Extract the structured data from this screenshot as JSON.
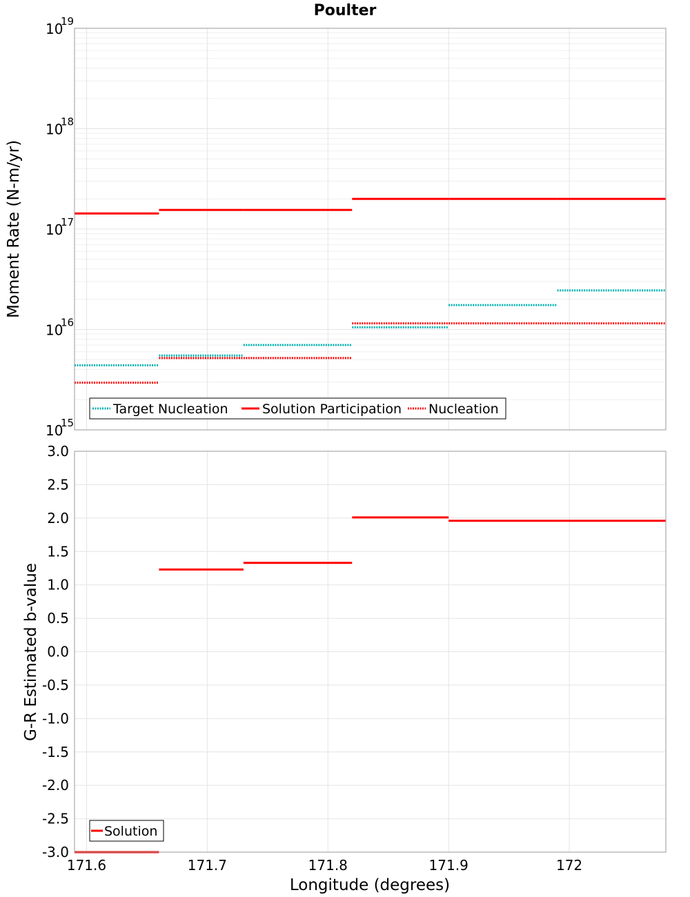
{
  "chart_data": [
    {
      "type": "line",
      "title": "Poulter",
      "ylabel": "Moment Rate (N-m/yr)",
      "yscale": "log",
      "ylim": [
        1000000000000000.0,
        1e+19
      ],
      "y_ticks": [
        {
          "base": "10",
          "exp": "15",
          "value": 1000000000000000.0
        },
        {
          "base": "10",
          "exp": "16",
          "value": 1e+16
        },
        {
          "base": "10",
          "exp": "17",
          "value": 1e+17
        },
        {
          "base": "10",
          "exp": "18",
          "value": 1e+18
        },
        {
          "base": "10",
          "exp": "19",
          "value": 1e+19
        }
      ],
      "xlim": [
        171.59,
        172.08
      ],
      "grid": true,
      "legend_position": "bottom-left",
      "series": [
        {
          "name": "Target Nucleation",
          "color": "#00b0b0",
          "style": "dotted",
          "segments": [
            {
              "x0": 171.59,
              "x1": 171.66,
              "y": 4400000000000000.0
            },
            {
              "x0": 171.66,
              "x1": 171.73,
              "y": 5500000000000000.0
            },
            {
              "x0": 171.73,
              "x1": 171.82,
              "y": 7000000000000000.0
            },
            {
              "x0": 171.82,
              "x1": 171.9,
              "y": 1.05e+16
            },
            {
              "x0": 171.9,
              "x1": 171.99,
              "y": 1.75e+16
            },
            {
              "x0": 171.99,
              "x1": 172.08,
              "y": 2.45e+16
            }
          ]
        },
        {
          "name": "Solution Participation",
          "color": "#ff0000",
          "style": "solid",
          "segments": [
            {
              "x0": 171.59,
              "x1": 171.66,
              "y": 1.43e+17
            },
            {
              "x0": 171.66,
              "x1": 171.73,
              "y": 1.55e+17
            },
            {
              "x0": 171.73,
              "x1": 171.82,
              "y": 1.55e+17
            },
            {
              "x0": 171.82,
              "x1": 171.9,
              "y": 2e+17
            },
            {
              "x0": 171.9,
              "x1": 171.99,
              "y": 2e+17
            },
            {
              "x0": 171.99,
              "x1": 172.08,
              "y": 2e+17
            }
          ]
        },
        {
          "name": "Nucleation",
          "color": "#ff0000",
          "style": "dotted",
          "segments": [
            {
              "x0": 171.59,
              "x1": 171.66,
              "y": 2950000000000000.0
            },
            {
              "x0": 171.66,
              "x1": 171.73,
              "y": 5200000000000000.0
            },
            {
              "x0": 171.73,
              "x1": 171.82,
              "y": 5200000000000000.0
            },
            {
              "x0": 171.82,
              "x1": 171.9,
              "y": 1.15e+16
            },
            {
              "x0": 171.9,
              "x1": 171.99,
              "y": 1.15e+16
            },
            {
              "x0": 171.99,
              "x1": 172.08,
              "y": 1.15e+16
            }
          ]
        }
      ]
    },
    {
      "type": "line",
      "xlabel": "Longitude (degrees)",
      "ylabel": "G-R Estimated b-value",
      "ylim": [
        -3.0,
        3.0
      ],
      "y_ticks": [
        "3.0",
        "2.5",
        "2.0",
        "1.5",
        "1.0",
        "0.5",
        "0.0",
        "-0.5",
        "-1.0",
        "-1.5",
        "-2.0",
        "-2.5",
        "-3.0"
      ],
      "xlim": [
        171.59,
        172.08
      ],
      "x_ticks": [
        "171.6",
        "171.7",
        "171.8",
        "171.9",
        "172"
      ],
      "grid": true,
      "legend_position": "bottom-left",
      "series": [
        {
          "name": "Solution",
          "color": "#ff0000",
          "style": "solid",
          "segments": [
            {
              "x0": 171.59,
              "x1": 171.66,
              "y": -3.0
            },
            {
              "x0": 171.66,
              "x1": 171.73,
              "y": 1.23
            },
            {
              "x0": 171.73,
              "x1": 171.82,
              "y": 1.33
            },
            {
              "x0": 171.82,
              "x1": 171.9,
              "y": 2.01
            },
            {
              "x0": 171.9,
              "x1": 171.99,
              "y": 1.96
            },
            {
              "x0": 171.99,
              "x1": 172.08,
              "y": 1.96
            }
          ]
        }
      ]
    }
  ]
}
